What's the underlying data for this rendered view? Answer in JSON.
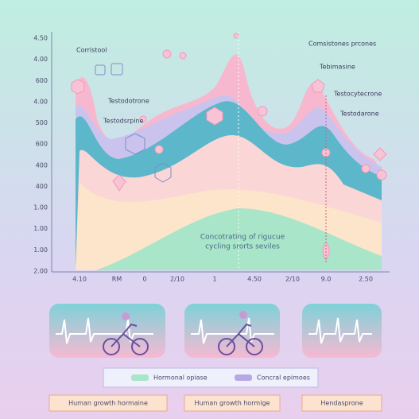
{
  "y_axis_labels": [
    "4.50",
    "4.00",
    "600",
    "4.00",
    "500",
    "600",
    "400",
    "400",
    "1.00",
    "1.00",
    "1.00",
    "2.00"
  ],
  "x_axis_labels": [
    "4.10",
    "RM",
    "0",
    "2/10",
    "1",
    "4.50",
    "2/10",
    "9.0",
    "2.50"
  ],
  "annotations": [
    "Corristool",
    "Comsistones prcones",
    "Tebimasine",
    "Testodotrone",
    "Testocytecrone",
    "Testodsrpine",
    "Testodarone"
  ],
  "caption": [
    "Concotrating of rigucue",
    "cycling srorts seviles"
  ],
  "legend": [
    "Hormonal opiase",
    "Concral epimoes"
  ],
  "boxes": [
    "Human growth hormaine",
    "Human growth hormige",
    "Hendasprone"
  ]
}
